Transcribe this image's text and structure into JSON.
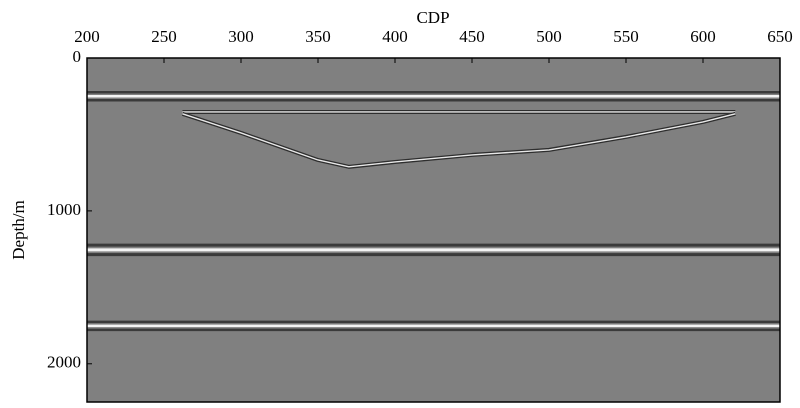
{
  "chart_data": {
    "type": "seismic",
    "xlabel": "CDP",
    "ylabel": "Depth/m",
    "xlim": [
      200,
      650
    ],
    "xticks": [
      200,
      250,
      300,
      350,
      400,
      450,
      500,
      550,
      600,
      650
    ],
    "ylim": [
      0,
      2250
    ],
    "yticks": [
      0,
      1000,
      2000
    ],
    "y_inverted": true,
    "background": "#808080",
    "reflectors": {
      "depth": [
        250,
        1255,
        1752
      ]
    },
    "lens_top": {
      "x": [
        262,
        621
      ],
      "depth": [
        353,
        353
      ]
    },
    "lens_bottom": {
      "x": [
        262,
        300,
        350,
        370,
        400,
        450,
        500,
        550,
        600,
        621
      ],
      "depth": [
        365,
        490,
        667,
        712,
        680,
        634,
        601,
        516,
        418,
        365
      ]
    }
  }
}
